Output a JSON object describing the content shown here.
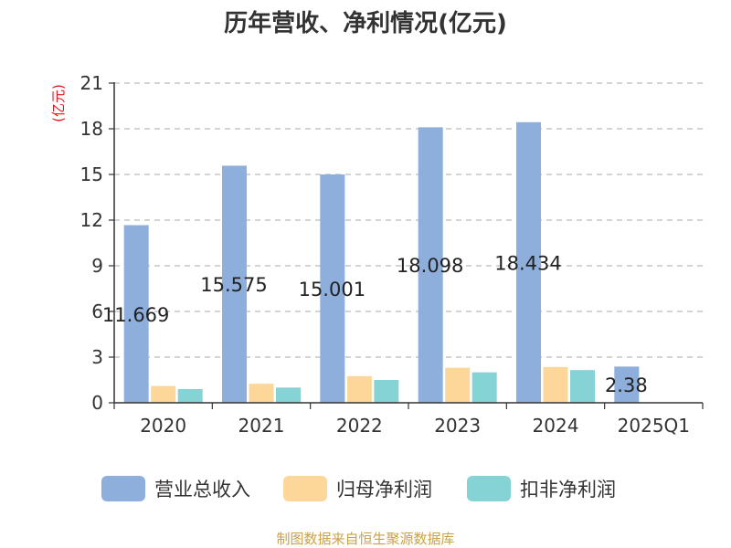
{
  "chart_data": {
    "type": "bar",
    "title": "历年营收、净利情况(亿元)",
    "unit_label": "(亿元)",
    "categories": [
      "2020",
      "2021",
      "2022",
      "2023",
      "2024",
      "2025Q1"
    ],
    "series": [
      {
        "name": "营业总收入",
        "color": "#8eaedb",
        "values": [
          11.669,
          15.575,
          15.001,
          18.098,
          18.434,
          2.38
        ]
      },
      {
        "name": "归母净利润",
        "color": "#fdd799",
        "values": [
          1.1,
          1.25,
          1.75,
          2.3,
          2.35,
          null
        ]
      },
      {
        "name": "扣非净利润",
        "color": "#86d3d6",
        "values": [
          0.9,
          1.0,
          1.5,
          2.0,
          2.15,
          null
        ]
      }
    ],
    "data_labels": [
      "11.669",
      "15.575",
      "15.001",
      "18.098",
      "18.434",
      "2.38"
    ],
    "ylim": [
      0,
      21
    ],
    "yticks": [
      0,
      3,
      6,
      9,
      12,
      15,
      18,
      21
    ],
    "grid": true,
    "legend_position": "bottom"
  },
  "source_note": "制图数据来自恒生聚源数据库"
}
